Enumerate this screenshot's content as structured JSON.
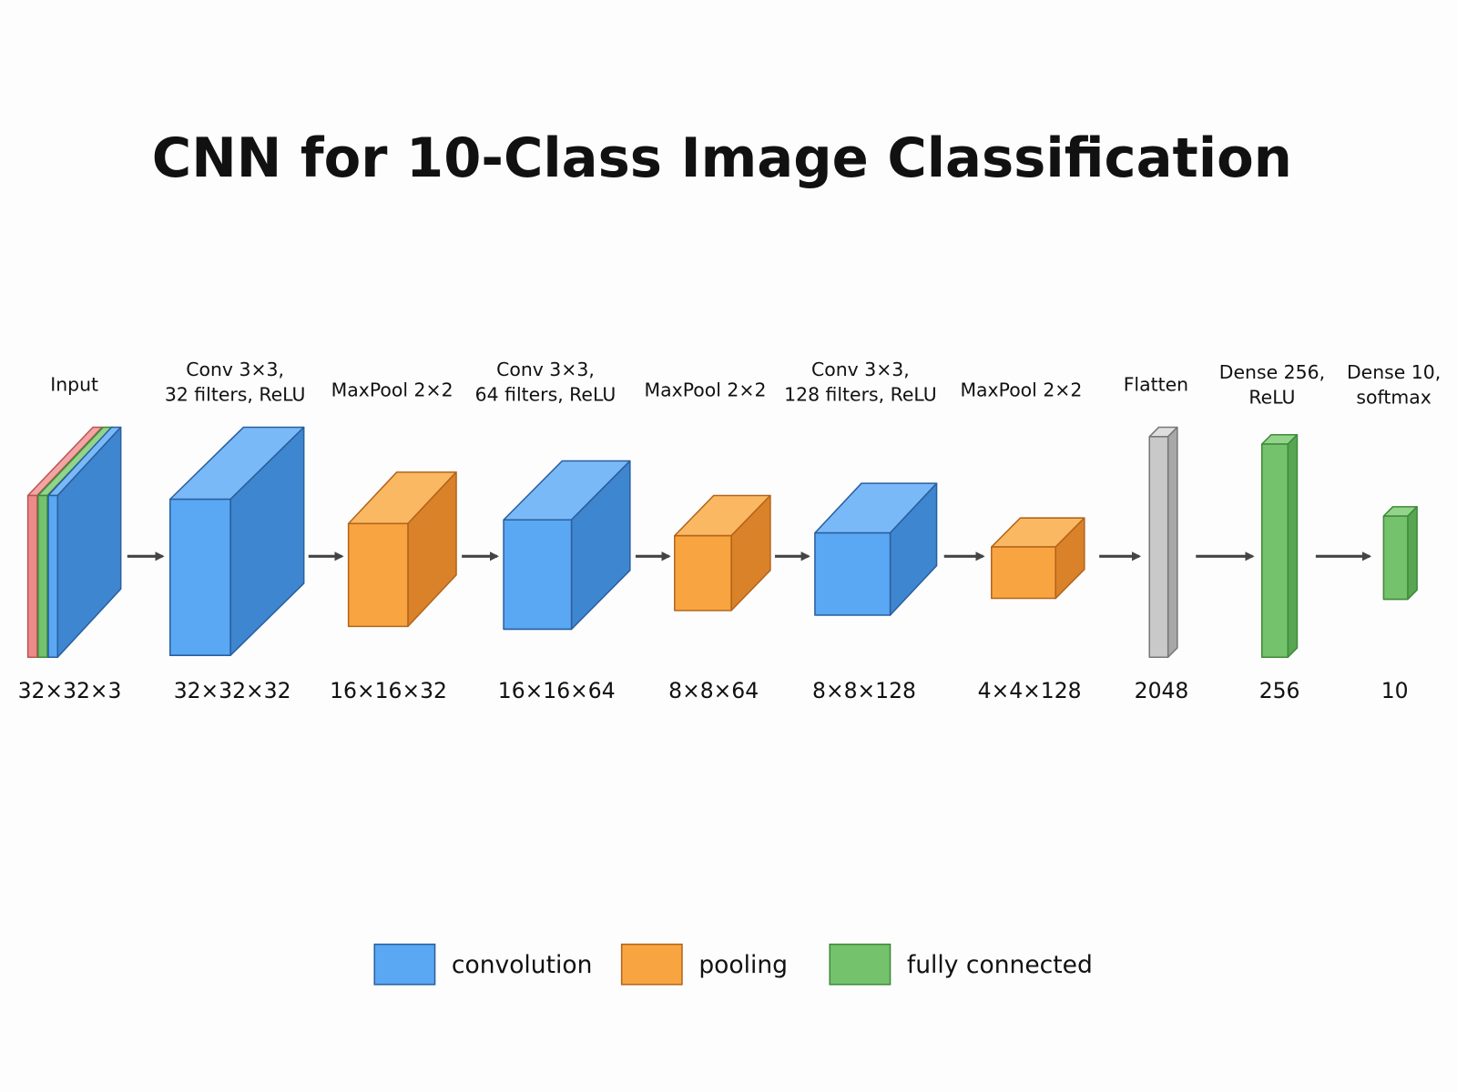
{
  "title": "CNN for 10-Class Image Classification",
  "layers": [
    {
      "label": [
        "Input"
      ],
      "shape": "32×32×3"
    },
    {
      "label": [
        "Conv 3×3,",
        "32 filters, ReLU"
      ],
      "shape": "32×32×32"
    },
    {
      "label": [
        "MaxPool 2×2"
      ],
      "shape": "16×16×32"
    },
    {
      "label": [
        "Conv 3×3,",
        "64 filters, ReLU"
      ],
      "shape": "16×16×64"
    },
    {
      "label": [
        "MaxPool 2×2"
      ],
      "shape": "8×8×64"
    },
    {
      "label": [
        "Conv 3×3,",
        "128 filters, ReLU"
      ],
      "shape": "8×8×128"
    },
    {
      "label": [
        "MaxPool 2×2"
      ],
      "shape": "4×4×128"
    },
    {
      "label": [
        "Flatten"
      ],
      "shape": "2048"
    },
    {
      "label": [
        "Dense 256,",
        "ReLU"
      ],
      "shape": "256"
    },
    {
      "label": [
        "Dense 10,",
        "softmax"
      ],
      "shape": "10"
    }
  ],
  "legend": [
    "convolution",
    "pooling",
    "fully connected"
  ]
}
